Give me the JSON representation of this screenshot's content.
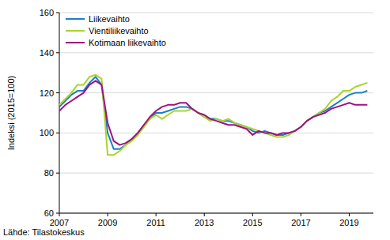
{
  "chart_data": {
    "type": "line",
    "y_label": "Indeksi (2015=100)",
    "source": "Lähde: Tilastokeskus",
    "x": [
      2007,
      2007.25,
      2007.5,
      2007.75,
      2008,
      2008.25,
      2008.5,
      2008.75,
      2009,
      2009.25,
      2009.5,
      2009.75,
      2010,
      2010.25,
      2010.5,
      2010.75,
      2011,
      2011.25,
      2011.5,
      2011.75,
      2012,
      2012.25,
      2012.5,
      2012.75,
      2013,
      2013.25,
      2013.5,
      2013.75,
      2014,
      2014.25,
      2014.5,
      2014.75,
      2015,
      2015.25,
      2015.5,
      2015.75,
      2016,
      2016.25,
      2016.5,
      2016.75,
      2017,
      2017.25,
      2017.5,
      2017.75,
      2018,
      2018.25,
      2018.5,
      2018.75,
      2019,
      2019.25,
      2019.5,
      2019.75
    ],
    "series": [
      {
        "name": "Liikevaihto",
        "color": "#1a7fc6",
        "values": [
          113,
          116,
          119,
          121,
          121,
          125,
          128,
          124,
          100,
          92,
          92,
          94,
          97,
          100,
          104,
          107,
          110,
          110,
          111,
          112,
          113,
          113,
          112,
          110,
          108,
          107,
          107,
          106,
          106,
          105,
          104,
          103,
          101,
          100,
          101,
          100,
          99,
          99,
          100,
          101,
          103,
          106,
          108,
          110,
          111,
          113,
          115,
          117,
          119,
          120,
          120,
          121
        ]
      },
      {
        "name": "Vientiliikevaihto",
        "color": "#a9d42e",
        "values": [
          114,
          117,
          120,
          124,
          124,
          128,
          129,
          127,
          89,
          89,
          91,
          94,
          96,
          99,
          103,
          107,
          109,
          107,
          109,
          111,
          111,
          111,
          112,
          110,
          108,
          106,
          107,
          106,
          107,
          105,
          104,
          103,
          102,
          101,
          100,
          99,
          98,
          98,
          99,
          101,
          103,
          106,
          108,
          110,
          112,
          116,
          118,
          121,
          121,
          123,
          124,
          125
        ]
      },
      {
        "name": "Kotimaan liikevaihto",
        "color": "#a0127f",
        "values": [
          111,
          114,
          116,
          118,
          120,
          124,
          126,
          124,
          105,
          96,
          94,
          95,
          97,
          100,
          104,
          108,
          111,
          113,
          114,
          114,
          115,
          115,
          112,
          110,
          109,
          107,
          106,
          105,
          104,
          104,
          103,
          102,
          99,
          101,
          100,
          100,
          99,
          100,
          100,
          101,
          103,
          106,
          108,
          109,
          110,
          112,
          113,
          114,
          115,
          114,
          114,
          114
        ]
      }
    ],
    "xlim": [
      2007,
      2020
    ],
    "xticks": [
      2007,
      2009,
      2011,
      2013,
      2015,
      2017,
      2019
    ],
    "ylim": [
      60,
      160
    ],
    "yticks": [
      60,
      80,
      100,
      120,
      140,
      160
    ],
    "grid": true,
    "legend": "top-left"
  }
}
